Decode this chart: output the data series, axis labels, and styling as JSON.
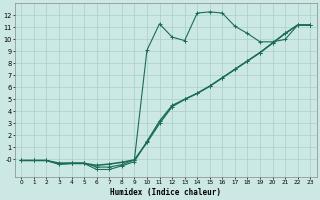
{
  "xlabel": "Humidex (Indice chaleur)",
  "bg_color": "#cce8e4",
  "grid_color": "#aacfca",
  "line_color": "#1a6b5a",
  "xlim": [
    -0.5,
    23.5
  ],
  "ylim": [
    -1.5,
    13.0
  ],
  "xticks": [
    0,
    1,
    2,
    3,
    4,
    5,
    6,
    7,
    8,
    9,
    10,
    11,
    12,
    13,
    14,
    15,
    16,
    17,
    18,
    19,
    20,
    21,
    22,
    23
  ],
  "yticks": [
    0,
    1,
    2,
    3,
    4,
    5,
    6,
    7,
    8,
    9,
    10,
    11,
    12
  ],
  "ytick_labels": [
    "-0",
    "1",
    "2",
    "3",
    "4",
    "5",
    "6",
    "7",
    "8",
    "9",
    "10",
    "11",
    "12"
  ],
  "line1_x": [
    0,
    1,
    2,
    3,
    4,
    5,
    6,
    7,
    8,
    9,
    10,
    11,
    12,
    13,
    14,
    15,
    16,
    17,
    18,
    19,
    20,
    21,
    22,
    23
  ],
  "line1_y": [
    -0.1,
    -0.1,
    -0.1,
    -0.3,
    -0.3,
    -0.3,
    -0.65,
    -0.65,
    -0.45,
    -0.05,
    9.1,
    11.3,
    10.2,
    9.9,
    12.2,
    12.3,
    12.2,
    11.1,
    10.5,
    9.8,
    9.8,
    10.0,
    11.2,
    11.2
  ],
  "line2_x": [
    0,
    1,
    2,
    3,
    4,
    5,
    6,
    7,
    8,
    9,
    10,
    11,
    12,
    13,
    14,
    15,
    16,
    17,
    18,
    19,
    20,
    21,
    22,
    23
  ],
  "line2_y": [
    -0.1,
    -0.1,
    -0.1,
    -0.4,
    -0.35,
    -0.35,
    -0.5,
    -0.4,
    -0.25,
    -0.05,
    1.4,
    3.0,
    4.4,
    5.0,
    5.5,
    6.1,
    6.8,
    7.5,
    8.2,
    8.9,
    9.7,
    10.5,
    11.2,
    11.2
  ],
  "line3_x": [
    0,
    1,
    2,
    3,
    4,
    5,
    6,
    7,
    8,
    9,
    10,
    11,
    12,
    13,
    14,
    15,
    16,
    17,
    18,
    19,
    20,
    21,
    22,
    23
  ],
  "line3_y": [
    -0.1,
    -0.1,
    -0.1,
    -0.4,
    -0.35,
    -0.35,
    -0.85,
    -0.85,
    -0.55,
    -0.2,
    1.5,
    3.2,
    4.5,
    5.0,
    5.5,
    6.1,
    6.8,
    7.5,
    8.2,
    8.9,
    9.7,
    10.5,
    11.2,
    11.2
  ]
}
